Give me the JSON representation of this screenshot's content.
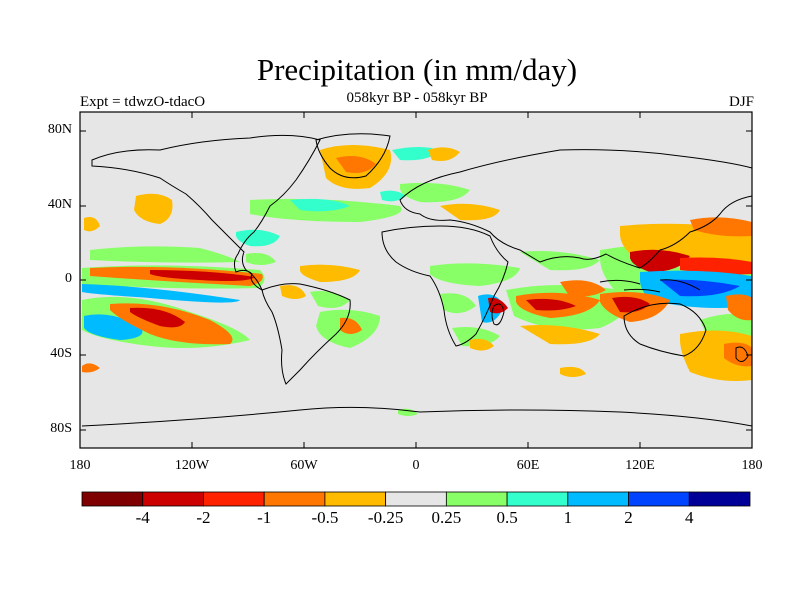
{
  "title": "Precipitation (in mm/day)",
  "subtitle": "058kyr BP - 058kyr BP",
  "left_label": "Expt = tdwzO-tdacO",
  "right_label": "DJF",
  "lat_labels": [
    "80N",
    "40N",
    "0",
    "40S",
    "80S"
  ],
  "lon_labels": [
    "180",
    "120W",
    "60W",
    "0",
    "60E",
    "120E",
    "180"
  ],
  "colorbar": {
    "colors": [
      "#7f0000",
      "#cc0000",
      "#ff2200",
      "#ff7700",
      "#ffbb00",
      "#e6e6e6",
      "#88ff66",
      "#33ffcc",
      "#00bbff",
      "#0044ff",
      "#000099"
    ],
    "labels": [
      "-4",
      "-2",
      "-1",
      "-0.5",
      "-0.25",
      "0.25",
      "0.5",
      "1",
      "2",
      "4"
    ]
  },
  "map": {
    "background": "#e6e6e6",
    "coastline": "#000000"
  }
}
